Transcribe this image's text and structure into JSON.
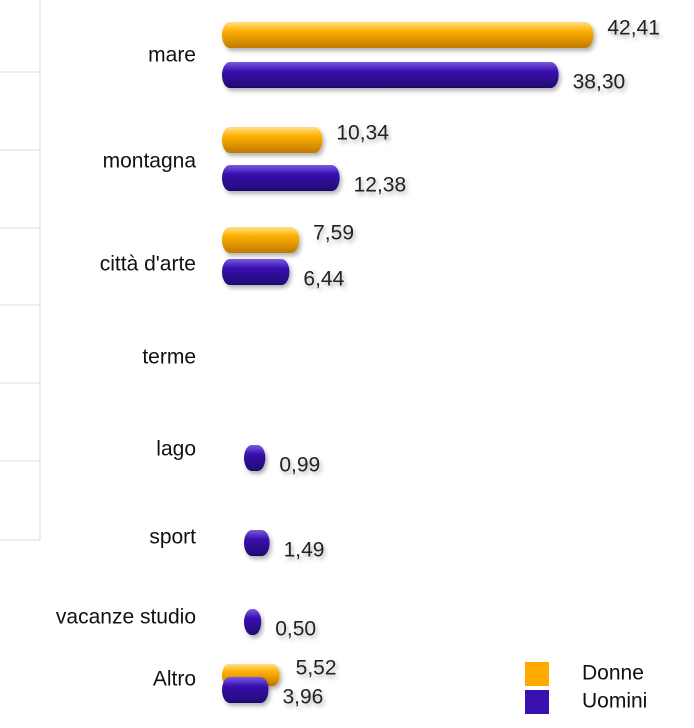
{
  "chart_data": {
    "type": "bar",
    "orientation": "horizontal",
    "categories": [
      "mare",
      "montagna",
      "città d'arte",
      "terme",
      "lago",
      "sport",
      "vacanze studio",
      "Altro"
    ],
    "series": [
      {
        "name": "Donne",
        "color": "#ffaa00",
        "values": [
          42.41,
          10.34,
          7.59,
          null,
          null,
          null,
          null,
          5.52
        ],
        "value_labels": [
          "42,41",
          "10,34",
          "7,59",
          null,
          null,
          null,
          null,
          "5,52"
        ]
      },
      {
        "name": "Uomini",
        "color": "#3a10b0",
        "values": [
          38.3,
          12.38,
          6.44,
          null,
          0.99,
          1.49,
          0.5,
          3.96
        ],
        "value_labels": [
          "38,30",
          "12,38",
          "6,44",
          null,
          "0,99",
          "1,49",
          "0,50",
          "3,96"
        ]
      }
    ],
    "legend": "bottom-right"
  }
}
